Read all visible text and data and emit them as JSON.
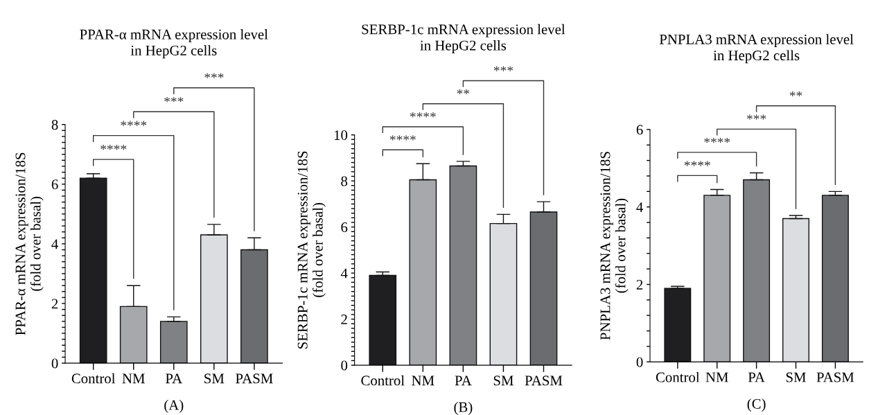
{
  "chart_data": [
    {
      "type": "bar",
      "title": "PPAR-α mRNA expression level\nin HepG2 cells",
      "xlabel": "(A)",
      "ylabel": "PPAR-α mRNA expression/18S\n(fold over basal)",
      "categories": [
        "Control",
        "NM",
        "PA",
        "SM",
        "PASM"
      ],
      "values": [
        6.2,
        1.9,
        1.4,
        4.3,
        3.8
      ],
      "colors": [
        "#1f1f21",
        "#a7a8ab",
        "#808185",
        "#dcdde0",
        "#6b6c70"
      ],
      "errors": [
        [
          6.2,
          6.35
        ],
        [
          1.9,
          2.6
        ],
        [
          1.4,
          1.55
        ],
        [
          4.3,
          4.65
        ],
        [
          3.8,
          4.2
        ]
      ],
      "ylim": [
        0,
        8
      ],
      "yticks": [
        0,
        {
          "value": 0.2,
          "label": null
        },
        {
          "value": 0.4,
          "label": null
        },
        {
          "value": 0.6,
          "label": null
        },
        {
          "value": 0.8,
          "label": null
        },
        {
          "value": 1,
          "label": null
        },
        {
          "value": 1.2,
          "label": null
        },
        {
          "value": 1.4,
          "label": null
        },
        {
          "value": 1.6,
          "label": null
        },
        {
          "value": 1.8,
          "label": null
        },
        2,
        {
          "value": 2.2,
          "label": null
        },
        {
          "value": 2.4,
          "label": null
        },
        {
          "value": 2.6,
          "label": null
        },
        {
          "value": 2.8,
          "label": null
        },
        {
          "value": 3,
          "label": null
        },
        {
          "value": 3.2,
          "label": null
        },
        {
          "value": 3.4,
          "label": null
        },
        {
          "value": 3.6,
          "label": null
        },
        {
          "value": 3.8,
          "label": null
        },
        4,
        {
          "value": 4.2,
          "label": null
        },
        {
          "value": 4.4,
          "label": null
        },
        {
          "value": 4.6,
          "label": null
        },
        {
          "value": 4.8,
          "label": null
        },
        {
          "value": 5,
          "label": null
        },
        {
          "value": 5.2,
          "label": null
        },
        {
          "value": 5.4,
          "label": null
        },
        {
          "value": 5.6,
          "label": null
        },
        {
          "value": 5.8,
          "label": null
        },
        6,
        {
          "value": 6.2,
          "label": null
        },
        {
          "value": 6.4,
          "label": null
        },
        {
          "value": 6.6,
          "label": null
        },
        {
          "value": 6.8,
          "label": null
        },
        {
          "value": 7,
          "label": null
        },
        {
          "value": 7.2,
          "label": null
        },
        {
          "value": 7.4,
          "label": null
        },
        {
          "value": 7.6,
          "label": null
        },
        {
          "value": 7.8,
          "label": null
        },
        8
      ],
      "annotations": [
        "****",
        "****",
        "***",
        "***"
      ],
      "grid": false,
      "legend": false
    },
    {
      "type": "bar",
      "title": "SERBP-1c mRNA expression level\nin HepG2 cells",
      "xlabel": "(B)",
      "ylabel": "SERBP-1c mRNA expression/18S\n(fold over basal)",
      "categories": [
        "Control",
        "NM",
        "PA",
        "SM",
        "PASM"
      ],
      "values": [
        3.9,
        8.05,
        8.65,
        6.15,
        6.65
      ],
      "colors": [
        "#1f1f21",
        "#a7a8ab",
        "#808185",
        "#dcdde0",
        "#6b6c70"
      ],
      "errors": [
        [
          3.9,
          4.05
        ],
        [
          8.05,
          8.75
        ],
        [
          8.65,
          8.85
        ],
        [
          6.15,
          6.55
        ],
        [
          6.65,
          7.1
        ]
      ],
      "ylim": [
        0,
        10
      ],
      "yticks": [
        0,
        {
          "value": 0.2,
          "label": null
        },
        {
          "value": 0.4,
          "label": null
        },
        {
          "value": 0.6,
          "label": null
        },
        {
          "value": 0.8,
          "label": null
        },
        {
          "value": 1,
          "label": null
        },
        {
          "value": 1.2,
          "label": null
        },
        {
          "value": 1.4,
          "label": null
        },
        {
          "value": 1.6,
          "label": null
        },
        {
          "value": 1.8,
          "label": null
        },
        2,
        {
          "value": 2.2,
          "label": null
        },
        {
          "value": 2.4,
          "label": null
        },
        {
          "value": 2.6,
          "label": null
        },
        {
          "value": 2.8,
          "label": null
        },
        {
          "value": 3,
          "label": null
        },
        {
          "value": 3.2,
          "label": null
        },
        {
          "value": 3.4,
          "label": null
        },
        {
          "value": 3.6,
          "label": null
        },
        {
          "value": 3.8,
          "label": null
        },
        4,
        {
          "value": 4.2,
          "label": null
        },
        {
          "value": 4.4,
          "label": null
        },
        {
          "value": 4.6,
          "label": null
        },
        {
          "value": 4.8,
          "label": null
        },
        {
          "value": 5,
          "label": null
        },
        {
          "value": 5.2,
          "label": null
        },
        {
          "value": 5.4,
          "label": null
        },
        {
          "value": 5.6,
          "label": null
        },
        {
          "value": 5.8,
          "label": null
        },
        6,
        {
          "value": 6.2,
          "label": null
        },
        {
          "value": 6.4,
          "label": null
        },
        {
          "value": 6.6,
          "label": null
        },
        {
          "value": 6.8,
          "label": null
        },
        {
          "value": 7,
          "label": null
        },
        {
          "value": 7.2,
          "label": null
        },
        {
          "value": 7.4,
          "label": null
        },
        {
          "value": 7.6,
          "label": null
        },
        {
          "value": 7.8,
          "label": null
        },
        8,
        {
          "value": 8.2,
          "label": null
        },
        {
          "value": 8.4,
          "label": null
        },
        {
          "value": 8.6,
          "label": null
        },
        {
          "value": 8.8,
          "label": null
        },
        {
          "value": 9,
          "label": null
        },
        {
          "value": 9.2,
          "label": null
        },
        {
          "value": 9.4,
          "label": null
        },
        {
          "value": 9.6,
          "label": null
        },
        {
          "value": 9.8,
          "label": null
        },
        10
      ],
      "annotations": [
        "****",
        "****",
        "**",
        "***"
      ],
      "grid": false,
      "legend": false
    },
    {
      "type": "bar",
      "title": "PNPLA3 mRNA expression level\nin HepG2 cells",
      "xlabel": "(C)",
      "ylabel": "PNPLA3 mRNA expression/18S\n(fold over basal)",
      "categories": [
        "Control",
        "NM",
        "PA",
        "SM",
        "PASM"
      ],
      "values": [
        1.9,
        4.3,
        4.7,
        3.7,
        4.3
      ],
      "colors": [
        "#1f1f21",
        "#a7a8ab",
        "#808185",
        "#dcdde0",
        "#6b6c70"
      ],
      "errors": [
        [
          1.9,
          1.95
        ],
        [
          4.3,
          4.45
        ],
        [
          4.7,
          4.88
        ],
        [
          3.7,
          3.78
        ],
        [
          4.3,
          4.4
        ]
      ],
      "ylim": [
        0,
        6
      ],
      "yticks": [
        0,
        {
          "value": 0.4,
          "label": null
        },
        {
          "value": 0.8,
          "label": null
        },
        {
          "value": 1.2,
          "label": null
        },
        {
          "value": 1.6,
          "label": null
        },
        2,
        {
          "value": 2.4,
          "label": null
        },
        {
          "value": 2.8,
          "label": null
        },
        {
          "value": 3.2,
          "label": null
        },
        {
          "value": 3.6,
          "label": null
        },
        4,
        {
          "value": 4.4,
          "label": null
        },
        {
          "value": 4.8,
          "label": null
        },
        {
          "value": 5.2,
          "label": null
        },
        {
          "value": 5.6,
          "label": null
        },
        6
      ],
      "annotations": [
        "****",
        "****",
        "***",
        "**"
      ],
      "grid": false,
      "legend": false
    }
  ]
}
